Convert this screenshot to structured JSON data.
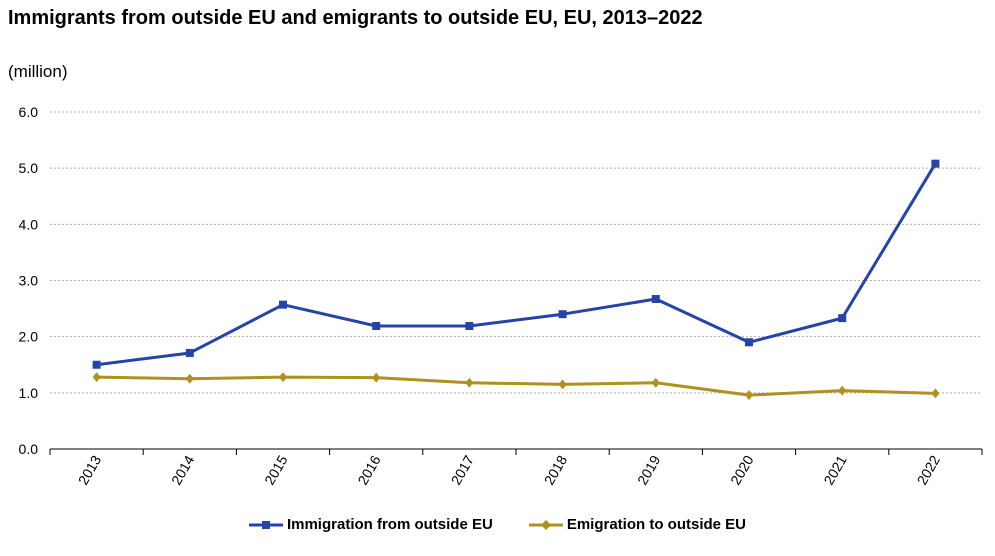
{
  "chart_data": {
    "type": "line",
    "title": "Immigrants from outside EU and emigrants to outside EU,  EU, 2013–2022",
    "unit_label": "(million)",
    "xlabel": "",
    "ylabel": "",
    "categories": [
      "2013",
      "2014",
      "2015",
      "2016",
      "2017",
      "2018",
      "2019",
      "2020",
      "2021",
      "2022"
    ],
    "ylim": [
      0,
      6
    ],
    "yticks": [
      "0.0",
      "1.0",
      "2.0",
      "3.0",
      "4.0",
      "5.0",
      "6.0"
    ],
    "grid": true,
    "legend_position": "bottom",
    "series": [
      {
        "name": "Immigration from outside EU",
        "color": "#2644A7",
        "marker": "square",
        "values": [
          1.5,
          1.71,
          2.57,
          2.19,
          2.19,
          2.4,
          2.67,
          1.9,
          2.33,
          5.08
        ]
      },
      {
        "name": "Emigration to outside EU",
        "color": "#B09120",
        "marker": "diamond",
        "values": [
          1.28,
          1.25,
          1.28,
          1.27,
          1.18,
          1.15,
          1.18,
          0.96,
          1.04,
          0.99
        ]
      }
    ]
  }
}
